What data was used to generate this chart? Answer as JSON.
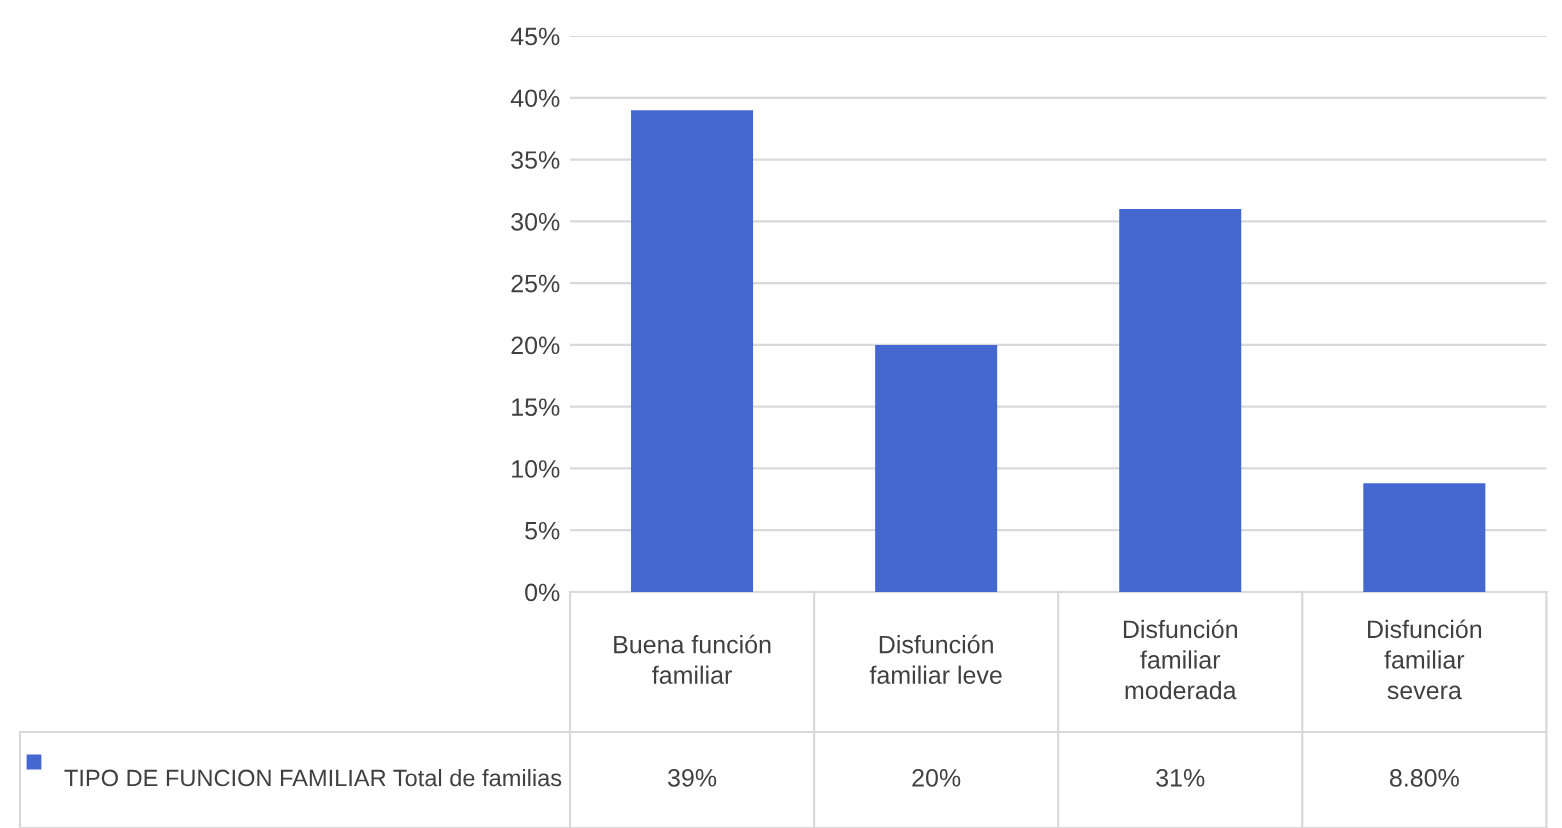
{
  "chart_data": {
    "type": "bar",
    "categories": [
      "Buena función familiar",
      "Disfunción familiar leve",
      "Disfunción familiar moderada",
      "Disfunción familiar severa"
    ],
    "series": [
      {
        "name": "TIPO DE FUNCION FAMILIAR Total de familias",
        "color": "#4468d0",
        "values": [
          39,
          20,
          31,
          8.8
        ],
        "value_labels": [
          "39%",
          "20%",
          "31%",
          "8.80%"
        ]
      }
    ],
    "ylim": [
      0,
      45
    ],
    "yticks": [
      {
        "value": 0,
        "label": "0%"
      },
      {
        "value": 5,
        "label": "5%"
      },
      {
        "value": 10,
        "label": "10%"
      },
      {
        "value": 15,
        "label": "15%"
      },
      {
        "value": 20,
        "label": "20%"
      },
      {
        "value": 25,
        "label": "25%"
      },
      {
        "value": 30,
        "label": "30%"
      },
      {
        "value": 35,
        "label": "35%"
      },
      {
        "value": 40,
        "label": "40%"
      },
      {
        "value": 45,
        "label": "45%"
      }
    ],
    "grid": "y",
    "legend": "bottom left"
  }
}
